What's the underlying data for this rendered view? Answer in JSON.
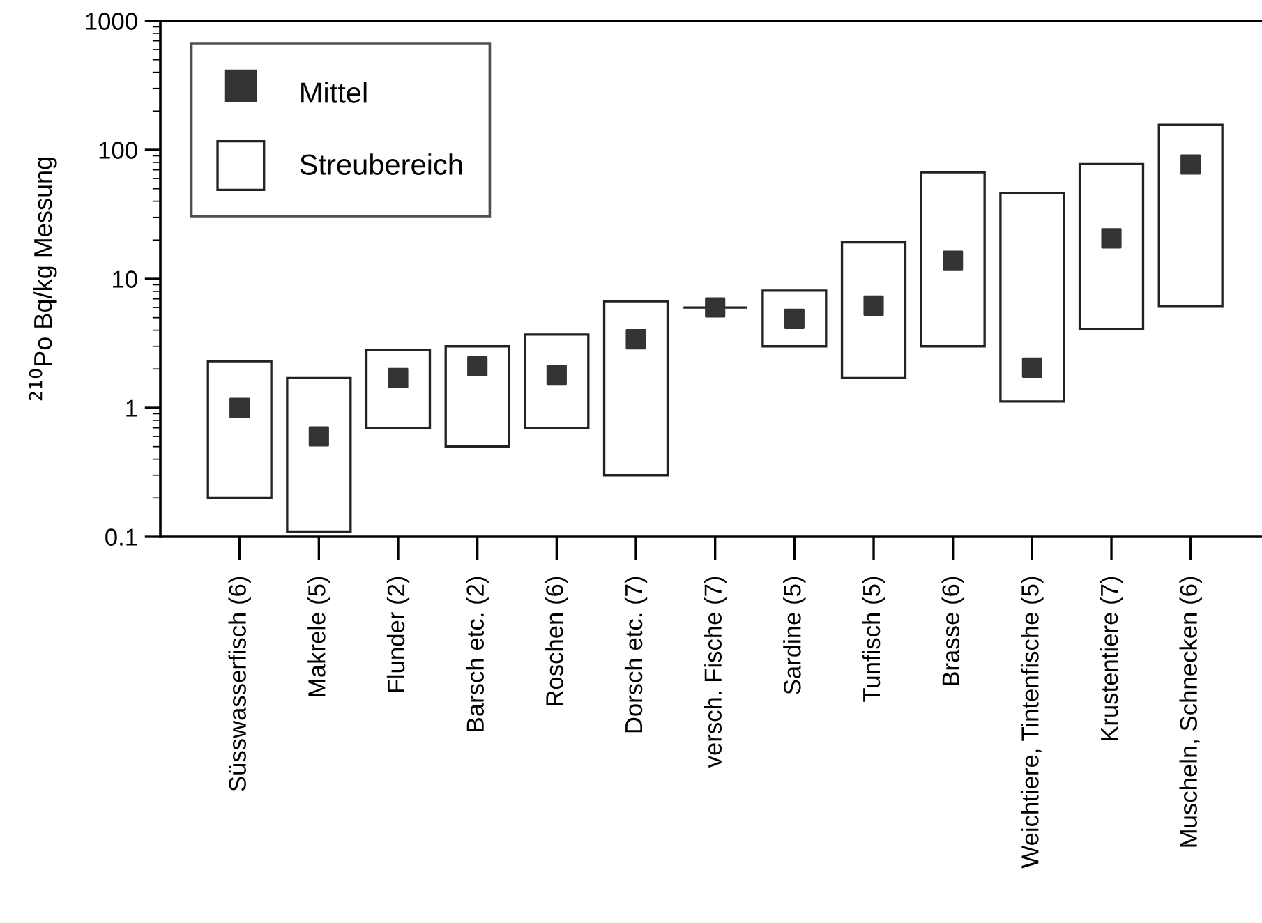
{
  "chart_data": {
    "type": "bar",
    "ylabel": "$^{210}$Po Bq/kg Messung",
    "categories": [
      "Süsswasserfisch (6)",
      "Makrele (5)",
      "Flunder (2)",
      "Barsch etc. (2)",
      "Roschen (6)",
      "Dorsch etc. (7)",
      "versch. Fische (7)",
      "Sardine (5)",
      "Tunfisch (5)",
      "Brasse (6)",
      "Weichtiere, Tintenfische (5)",
      "Krustentiere (7)",
      "Muscheln, Schnecken (6)"
    ],
    "series": [
      {
        "name": "Streubereich",
        "color": "#222222",
        "base": [
          0.2,
          0.11,
          0.7,
          0.5,
          0.7,
          0.3,
          6.0,
          3.0,
          1.7,
          3.0,
          1.12,
          4.1,
          6.1
        ],
        "values": [
          2.1,
          1.59,
          2.1,
          2.5,
          3.0,
          6.4,
          0,
          5.1,
          17.5,
          64,
          44.9,
          73.5,
          150
        ]
      },
      {
        "name": "Mittel",
        "type": "scatter",
        "color": "#333333",
        "marker": "square",
        "values": [
          1.0,
          0.6,
          1.7,
          2.1,
          1.8,
          3.4,
          6.0,
          4.9,
          6.2,
          13.8,
          2.05,
          20.6,
          77
        ]
      }
    ],
    "log": "y",
    "ylim": [
      0.1,
      1000
    ],
    "yticks": [
      0.1,
      1,
      10,
      100,
      1000
    ],
    "grid": false,
    "legend": "top left"
  }
}
